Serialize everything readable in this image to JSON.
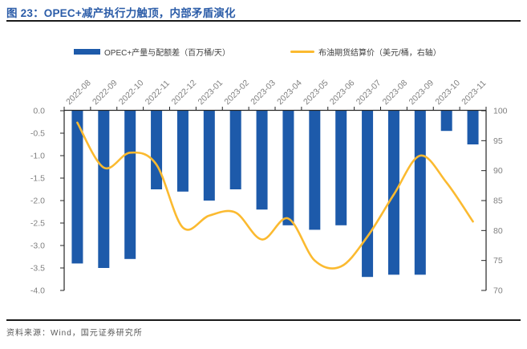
{
  "page": {
    "title": "图 23：OPEC+减产执行力触顶，内部矛盾演化",
    "source": "资料来源：Wind，国元证券研究所"
  },
  "legend": {
    "items": [
      {
        "label": "OPEC+产量与配额差（百万桶/天）",
        "marker": "bar-swatch",
        "color": "#1D5AAA"
      },
      {
        "label": "布油期货结算价（美元/桶，右轴）",
        "marker": "line-swatch",
        "color": "#FBBA30"
      }
    ]
  },
  "chart_data": {
    "type": "bar",
    "subtype": "dual-axis bar + smooth line",
    "title": "图 23：OPEC+减产执行力触顶，内部矛盾演化",
    "categories": [
      "2022-08",
      "2022-09",
      "2022-10",
      "2022-11",
      "2022-12",
      "2023-01",
      "2023-02",
      "2023-03",
      "2023-04",
      "2023-05",
      "2023-06",
      "2023-07",
      "2023-08",
      "2023-09",
      "2023-10",
      "2023-11"
    ],
    "series": [
      {
        "name": "OPEC+产量与配额差（百万桶/天）",
        "type": "bar",
        "axis": "left",
        "color": "#1D5AAA",
        "values": [
          -3.4,
          -3.5,
          -3.3,
          -1.75,
          -1.8,
          -2.0,
          -1.75,
          -2.2,
          -2.55,
          -2.65,
          -2.55,
          -3.7,
          -3.65,
          -3.65,
          -0.45,
          -0.75
        ]
      },
      {
        "name": "布油期货结算价（美元/桶，右轴）",
        "type": "line",
        "axis": "right",
        "color": "#FBBA30",
        "values": [
          98,
          90.5,
          93,
          91,
          80.5,
          82.5,
          83,
          78.5,
          82,
          75,
          74,
          79,
          86,
          92.5,
          88,
          81.5
        ]
      }
    ],
    "left_axis": {
      "min": -4,
      "max": 0,
      "step": 0.5,
      "ticks": [
        "0.0",
        "-0.5",
        "-1.0",
        "-1.5",
        "-2.0",
        "-2.5",
        "-3.0",
        "-3.5",
        "-4.0"
      ]
    },
    "right_axis": {
      "min": 70,
      "max": 100,
      "step": 5,
      "ticks": [
        "100",
        "95",
        "90",
        "85",
        "80",
        "75",
        "70"
      ]
    },
    "grid": false,
    "legend_position": "top",
    "x_label_rotation": 45,
    "axis_color": "#262626",
    "tick_label_color": "#7F7F7F"
  }
}
